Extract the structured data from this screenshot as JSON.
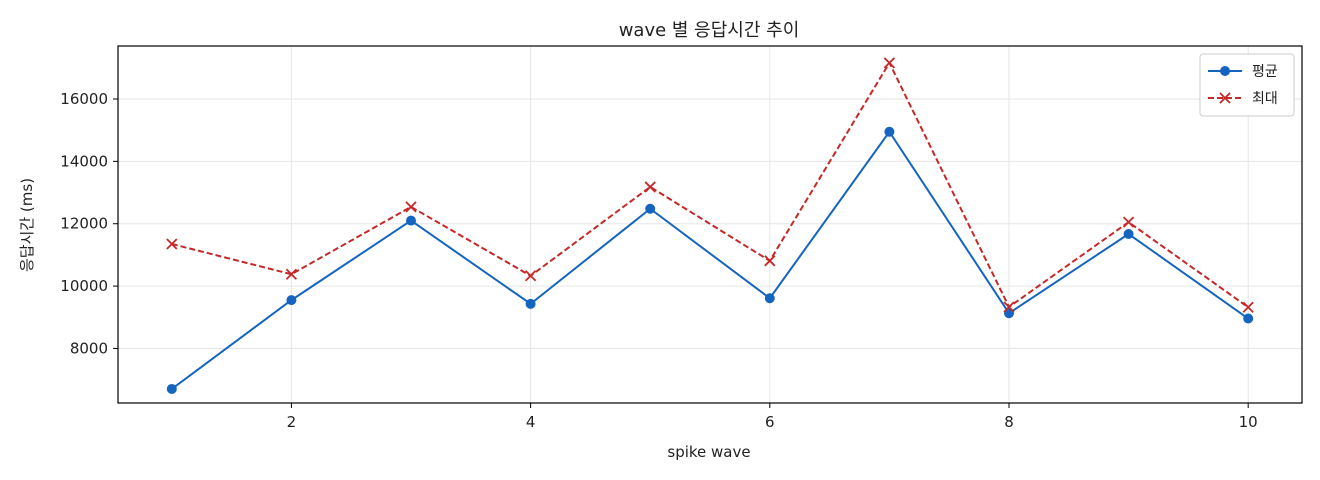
{
  "chart_data": {
    "type": "line",
    "title": "wave 별 응답시간 추이",
    "xlabel": "spike wave",
    "ylabel": "응답시간 (ms)",
    "x": [
      1,
      2,
      3,
      4,
      5,
      6,
      7,
      8,
      9,
      10
    ],
    "xlim": [
      0.55,
      10.45
    ],
    "ylim": [
      6250,
      17700
    ],
    "xticks": [
      2,
      4,
      6,
      8,
      10
    ],
    "yticks": [
      8000,
      10000,
      12000,
      14000,
      16000
    ],
    "grid": true,
    "legend_position": "top-right",
    "series": [
      {
        "name": "평균",
        "color": "#1565c0",
        "line_style": "solid",
        "marker": "circle",
        "values": [
          6700,
          9550,
          12100,
          9430,
          12480,
          9610,
          14950,
          9130,
          11670,
          8960
        ]
      },
      {
        "name": "최대",
        "color": "#c62828",
        "line_style": "dashed",
        "marker": "x",
        "values": [
          11350,
          10380,
          12540,
          10330,
          13180,
          10810,
          17160,
          9330,
          12050,
          9320
        ]
      }
    ]
  }
}
